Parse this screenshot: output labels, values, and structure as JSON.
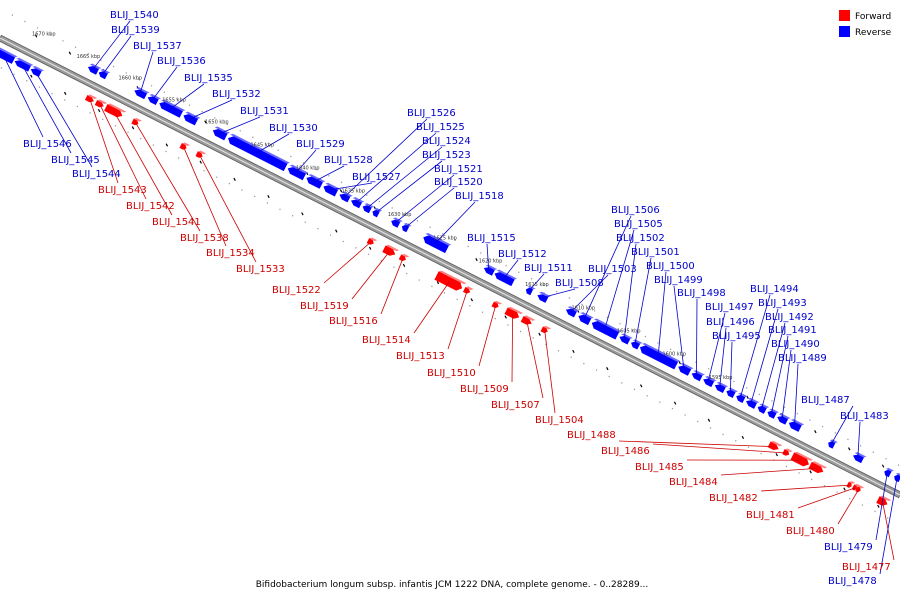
{
  "caption": "Bifidobacterium longum subsp. infantis JCM 1222 DNA, complete genome. - 0..28289...",
  "legend": {
    "forward": "Forward",
    "reverse": "Reverse"
  },
  "colors": {
    "forward": "#ff0000",
    "reverse": "#0000ff",
    "axis": "#9a9a9a"
  },
  "ticks": [
    "1670 kbp",
    "1665 kbp",
    "1660 kbp",
    "1655 kbp",
    "1650 kbp",
    "1645 kbp",
    "1640 kbp",
    "1635 kbp",
    "1630 kbp",
    "1625 kbp",
    "1620 kbp",
    "1615 kbp",
    "1610 kbp",
    "1605 kbp",
    "1600 kbp",
    "1595 kbp"
  ],
  "genes": [
    {
      "name": "BLIJ_1540",
      "strand": "reverse"
    },
    {
      "name": "BLIJ_1539",
      "strand": "reverse"
    },
    {
      "name": "BLIJ_1537",
      "strand": "reverse"
    },
    {
      "name": "BLIJ_1536",
      "strand": "reverse"
    },
    {
      "name": "BLIJ_1535",
      "strand": "reverse"
    },
    {
      "name": "BLIJ_1532",
      "strand": "reverse"
    },
    {
      "name": "BLIJ_1531",
      "strand": "reverse"
    },
    {
      "name": "BLIJ_1530",
      "strand": "reverse"
    },
    {
      "name": "BLIJ_1529",
      "strand": "reverse"
    },
    {
      "name": "BLIJ_1528",
      "strand": "reverse"
    },
    {
      "name": "BLIJ_1527",
      "strand": "reverse"
    },
    {
      "name": "BLIJ_1526",
      "strand": "reverse"
    },
    {
      "name": "BLIJ_1525",
      "strand": "reverse"
    },
    {
      "name": "BLIJ_1524",
      "strand": "reverse"
    },
    {
      "name": "BLIJ_1523",
      "strand": "reverse"
    },
    {
      "name": "BLIJ_1521",
      "strand": "reverse"
    },
    {
      "name": "BLIJ_1520",
      "strand": "reverse"
    },
    {
      "name": "BLIJ_1518",
      "strand": "reverse"
    },
    {
      "name": "BLIJ_1515",
      "strand": "reverse"
    },
    {
      "name": "BLIJ_1512",
      "strand": "reverse"
    },
    {
      "name": "BLIJ_1511",
      "strand": "reverse"
    },
    {
      "name": "BLIJ_1508",
      "strand": "reverse"
    },
    {
      "name": "BLIJ_1503",
      "strand": "reverse"
    },
    {
      "name": "BLIJ_1506",
      "strand": "reverse"
    },
    {
      "name": "BLIJ_1505",
      "strand": "reverse"
    },
    {
      "name": "BLIJ_1502",
      "strand": "reverse"
    },
    {
      "name": "BLIJ_1501",
      "strand": "reverse"
    },
    {
      "name": "BLIJ_1500",
      "strand": "reverse"
    },
    {
      "name": "BLIJ_1499",
      "strand": "reverse"
    },
    {
      "name": "BLIJ_1498",
      "strand": "reverse"
    },
    {
      "name": "BLIJ_1497",
      "strand": "reverse"
    },
    {
      "name": "BLIJ_1496",
      "strand": "reverse"
    },
    {
      "name": "BLIJ_1495",
      "strand": "reverse"
    },
    {
      "name": "BLIJ_1494",
      "strand": "reverse"
    },
    {
      "name": "BLIJ_1493",
      "strand": "reverse"
    },
    {
      "name": "BLIJ_1492",
      "strand": "reverse"
    },
    {
      "name": "BLIJ_1491",
      "strand": "reverse"
    },
    {
      "name": "BLIJ_1490",
      "strand": "reverse"
    },
    {
      "name": "BLIJ_1489",
      "strand": "reverse"
    },
    {
      "name": "BLIJ_1487",
      "strand": "reverse"
    },
    {
      "name": "BLIJ_1483",
      "strand": "reverse"
    },
    {
      "name": "BLIJ_1546",
      "strand": "reverse"
    },
    {
      "name": "BLIJ_1545",
      "strand": "reverse"
    },
    {
      "name": "BLIJ_1544",
      "strand": "reverse"
    },
    {
      "name": "BLIJ_1543",
      "strand": "forward"
    },
    {
      "name": "BLIJ_1542",
      "strand": "forward"
    },
    {
      "name": "BLIJ_1541",
      "strand": "forward"
    },
    {
      "name": "BLIJ_1538",
      "strand": "forward"
    },
    {
      "name": "BLIJ_1534",
      "strand": "forward"
    },
    {
      "name": "BLIJ_1533",
      "strand": "forward"
    },
    {
      "name": "BLIJ_1522",
      "strand": "forward"
    },
    {
      "name": "BLIJ_1519",
      "strand": "forward"
    },
    {
      "name": "BLIJ_1516",
      "strand": "forward"
    },
    {
      "name": "BLIJ_1514",
      "strand": "forward"
    },
    {
      "name": "BLIJ_1513",
      "strand": "forward"
    },
    {
      "name": "BLIJ_1510",
      "strand": "forward"
    },
    {
      "name": "BLIJ_1509",
      "strand": "forward"
    },
    {
      "name": "BLIJ_1507",
      "strand": "forward"
    },
    {
      "name": "BLIJ_1504",
      "strand": "forward"
    },
    {
      "name": "BLIJ_1488",
      "strand": "forward"
    },
    {
      "name": "BLIJ_1486",
      "strand": "forward"
    },
    {
      "name": "BLIJ_1485",
      "strand": "forward"
    },
    {
      "name": "BLIJ_1484",
      "strand": "forward"
    },
    {
      "name": "BLIJ_1482",
      "strand": "forward"
    },
    {
      "name": "BLIJ_1481",
      "strand": "forward"
    },
    {
      "name": "BLIJ_1480",
      "strand": "forward"
    },
    {
      "name": "BLIJ_1479",
      "strand": "reverse"
    },
    {
      "name": "BLIJ_1477",
      "strand": "forward"
    },
    {
      "name": "BLIJ_1478",
      "strand": "reverse"
    }
  ]
}
